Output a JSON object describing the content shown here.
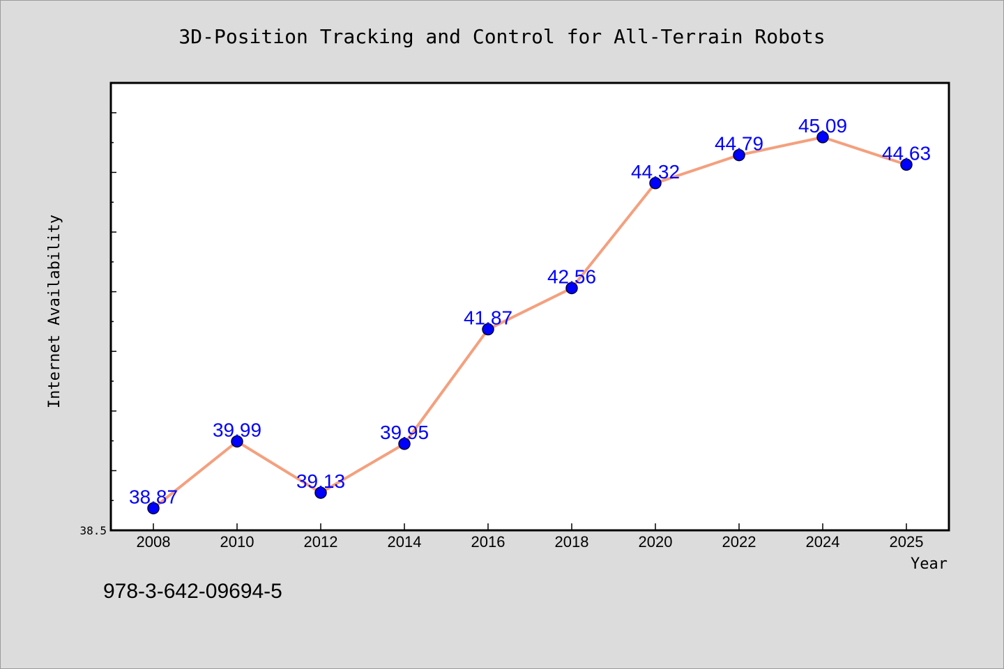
{
  "chart_data": {
    "type": "line",
    "title": "3D-Position Tracking and Control for All-Terrain Robots",
    "xlabel": "Year",
    "ylabel": "Internet Availability",
    "categories": [
      "2008",
      "2010",
      "2012",
      "2014",
      "2016",
      "2018",
      "2020",
      "2022",
      "2024",
      "2025"
    ],
    "values": [
      38.87,
      39.99,
      39.13,
      39.95,
      41.87,
      42.56,
      44.32,
      44.79,
      45.09,
      44.63
    ],
    "data_labels": [
      "38.87",
      "39.99",
      "39.13",
      "39.95",
      "41.87",
      "42.56",
      "44.32",
      "44.79",
      "45.09",
      "44.63"
    ],
    "y_tick_labels": [
      "38.5"
    ],
    "ylim": [
      38.5,
      46.0
    ],
    "grid": false,
    "legend": "none",
    "colors": {
      "line": "#f4a07e",
      "marker": "#0000ff",
      "marker_edge": "#000033",
      "data_label": "#0000ff",
      "plot_background": "#ffffff",
      "figure_background": "#dcdcdc"
    }
  },
  "footnote": "978-3-642-09694-5"
}
